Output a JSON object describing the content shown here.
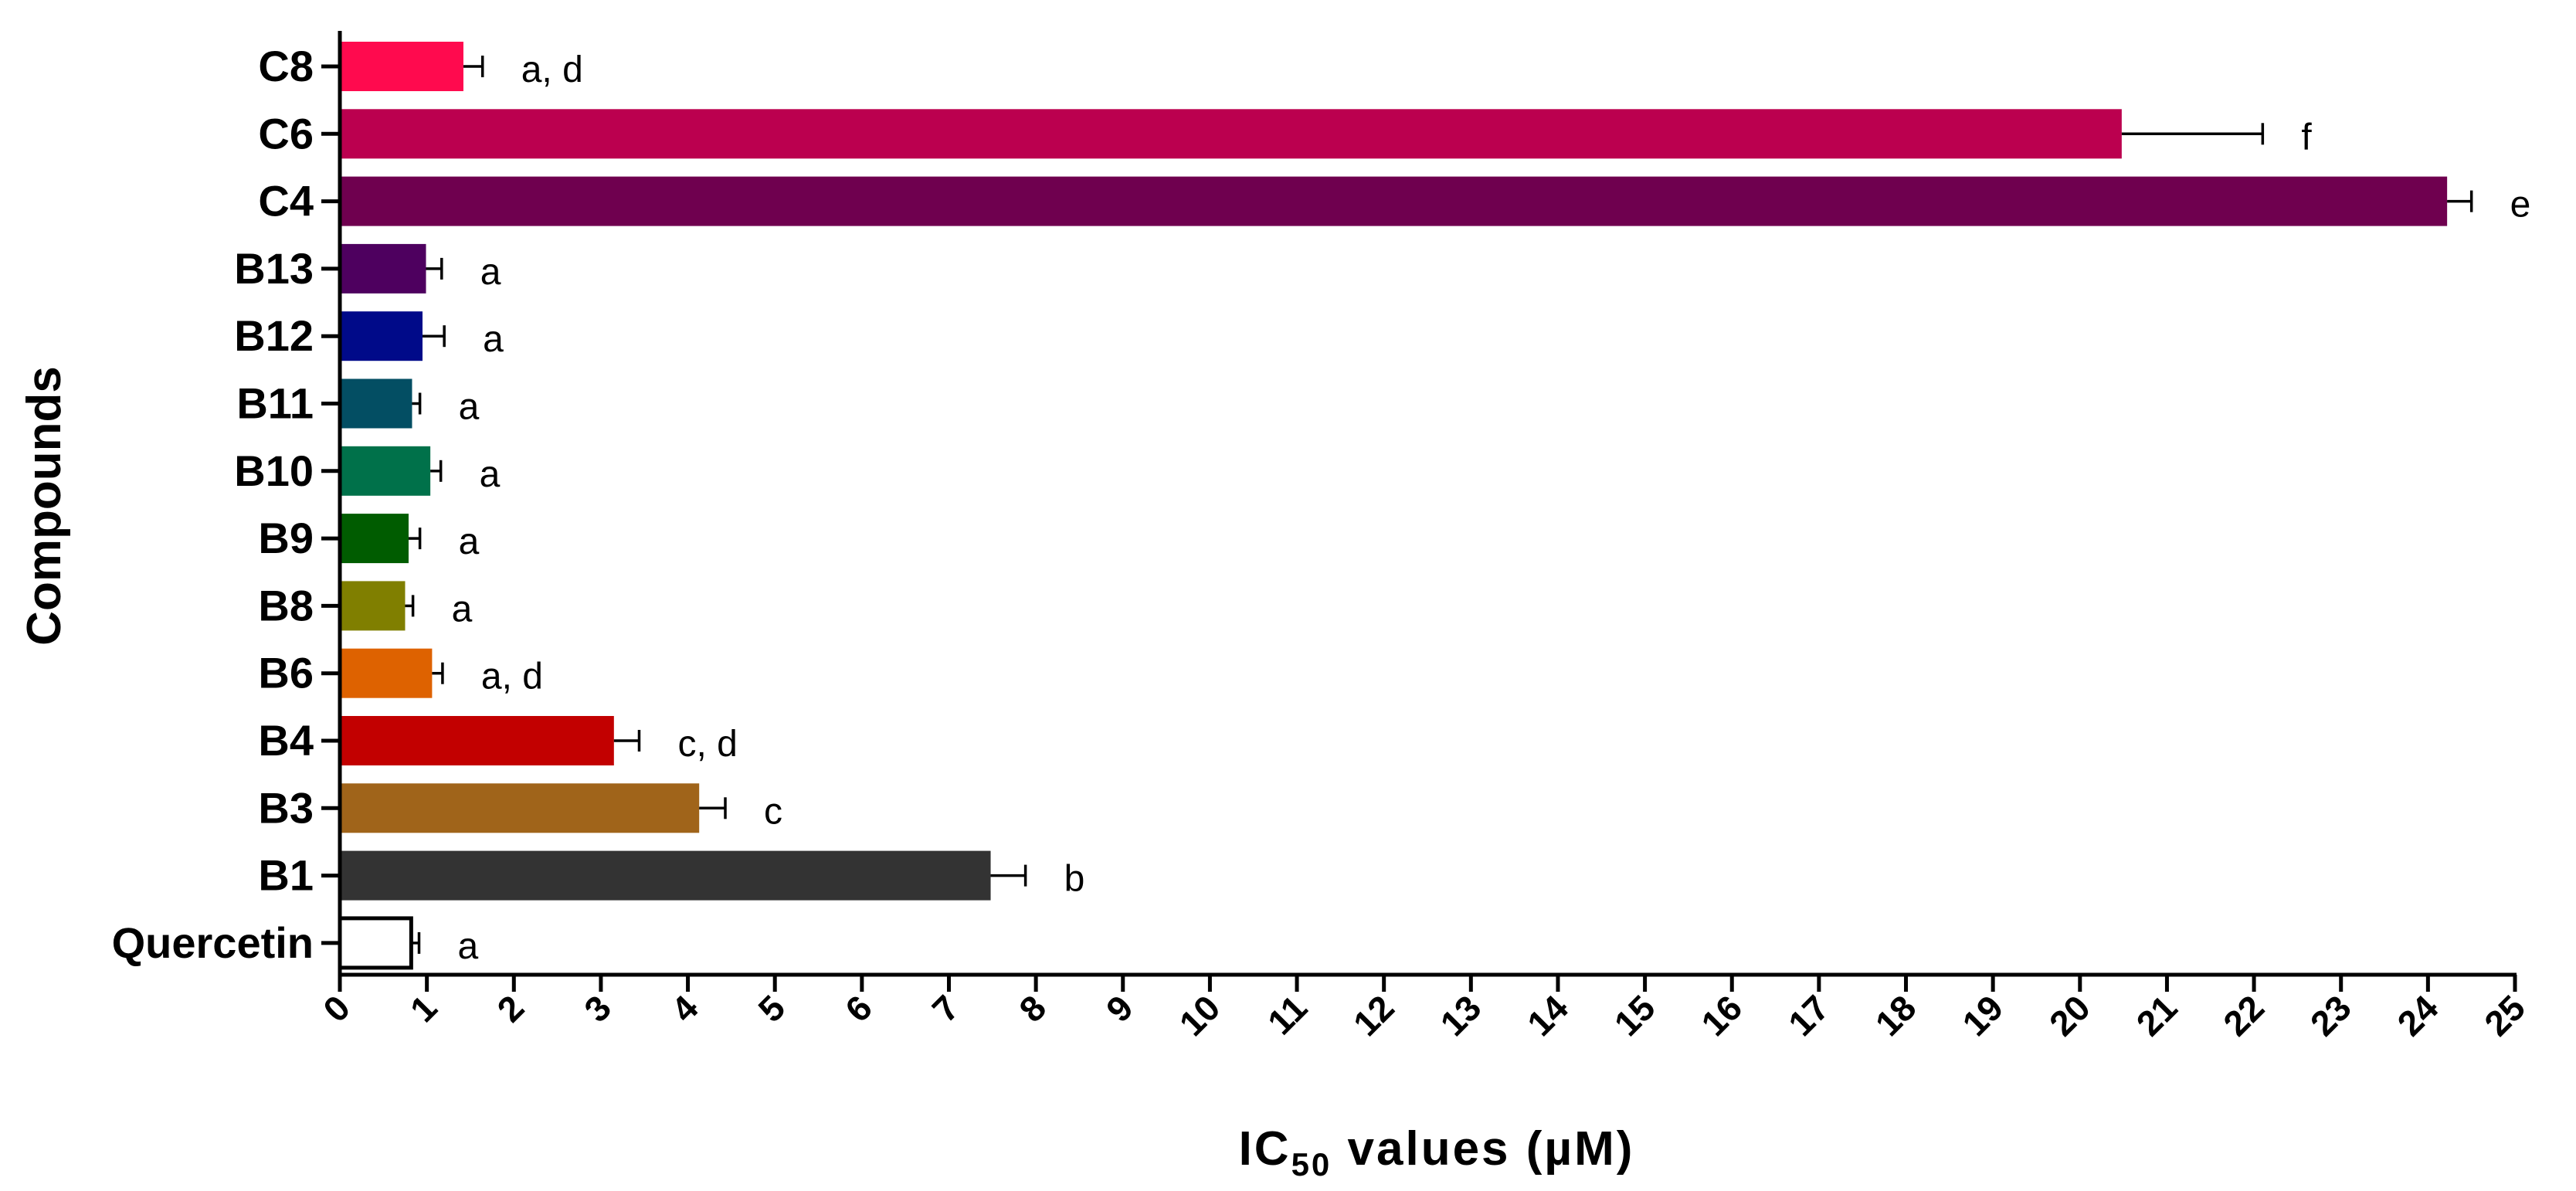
{
  "chart_data": {
    "type": "bar",
    "orientation": "horizontal",
    "categories": [
      "C8",
      "C6",
      "C4",
      "B13",
      "B12",
      "B11",
      "B10",
      "B9",
      "B8",
      "B6",
      "B4",
      "B3",
      "B1",
      "Quercetin"
    ],
    "values": [
      1.42,
      20.48,
      24.22,
      0.99,
      0.95,
      0.83,
      1.04,
      0.79,
      0.75,
      1.06,
      3.15,
      4.13,
      7.48,
      0.82
    ],
    "errors": [
      0.22,
      1.62,
      0.28,
      0.18,
      0.25,
      0.09,
      0.12,
      0.13,
      0.09,
      0.12,
      0.29,
      0.3,
      0.4,
      0.09
    ],
    "significance": [
      "a, d",
      "f",
      "e",
      "a",
      "a",
      "a",
      "a",
      "a",
      "a",
      "a, d",
      "c, d",
      "c",
      "b",
      "a"
    ],
    "colors": [
      "#ff0a4e",
      "#bb004f",
      "#6f004f",
      "#4e005f",
      "#000a89",
      "#034e63",
      "#00714a",
      "#005c00",
      "#807f00",
      "#de6200",
      "#c20000",
      "#a0641a",
      "#333333",
      "#ffffff"
    ],
    "xlabel_main": "IC",
    "xlabel_sub": "50",
    "xlabel_rest": " values (µM)",
    "ylabel": "Compounds",
    "xlim": [
      0,
      25
    ],
    "xticks": [
      "0",
      "1",
      "2",
      "3",
      "4",
      "5",
      "6",
      "7",
      "8",
      "9",
      "10",
      "11",
      "12",
      "13",
      "14",
      "15",
      "16",
      "17",
      "18",
      "19",
      "20",
      "21",
      "22",
      "23",
      "24",
      "25"
    ],
    "grid": false,
    "legend": "none"
  }
}
